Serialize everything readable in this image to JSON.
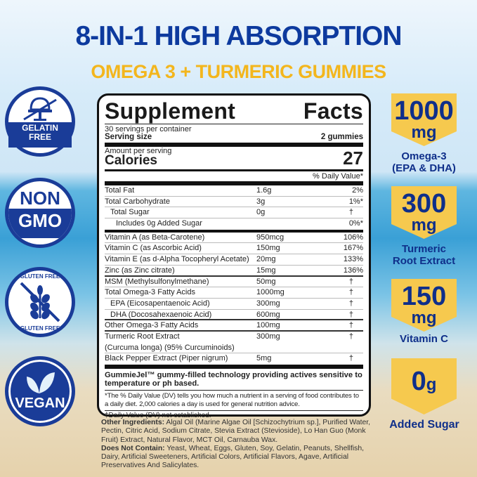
{
  "header": {
    "title": "8-IN-1 HIGH ABSORPTION",
    "subtitle": "OMEGA 3 + TURMERIC GUMMIES"
  },
  "colors": {
    "title": "#0d3a9e",
    "subtitle": "#f3b61d",
    "badge_blue": "#1a3c98",
    "banner_yellow": "#f6c94e"
  },
  "badges_left": [
    {
      "icon": "gelatin-free-icon",
      "line1": "GELATIN",
      "line2": "FREE"
    },
    {
      "icon": "non-gmo-icon",
      "line1": "NON",
      "line2": "GMO"
    },
    {
      "icon": "gluten-free-icon",
      "line1": "GLUTEN FREE",
      "line2": "GLUTEN FREE"
    },
    {
      "icon": "vegan-leaf-icon",
      "line1": "VEGAN"
    }
  ],
  "badges_right": [
    {
      "value": "1000",
      "unit": "mg",
      "caption1": "Omega-3",
      "caption2": "(EPA & DHA)"
    },
    {
      "value": "300",
      "unit": "mg",
      "caption1": "Turmeric",
      "caption2": "Root Extract"
    },
    {
      "value": "150",
      "unit": "mg",
      "caption1": "Vitamin C",
      "caption2": ""
    },
    {
      "value": "0",
      "unit": "g",
      "caption1": "Added Sugar",
      "caption2": ""
    }
  ],
  "facts": {
    "title_left": "Supplement",
    "title_right": "Facts",
    "servings": "30 servings per container",
    "serving_size_label": "Serving size",
    "serving_size": "2 gummies",
    "amount_label": "Amount per serving",
    "calories_label": "Calories",
    "calories": "27",
    "dv_header": "% Daily Value*",
    "group1": [
      {
        "name": "Total Fat",
        "amount": "1.6g",
        "dv": "2%",
        "indent": 0
      },
      {
        "name": "Total Carbohydrate",
        "amount": "3g",
        "dv": "1%*",
        "indent": 0
      },
      {
        "name": "Total Sugar",
        "amount": "0g",
        "dv": "†",
        "indent": 1
      },
      {
        "name": "Includes 0g Added Sugar",
        "amount": "",
        "dv": "0%*",
        "indent": 2
      }
    ],
    "group2": [
      {
        "name": "Vitamin A (as Beta-Carotene)",
        "amount": "950mcg",
        "dv": "106%",
        "indent": 0
      },
      {
        "name": "Vitamin C (as Ascorbic Acid)",
        "amount": "150mg",
        "dv": "167%",
        "indent": 0
      },
      {
        "name": "Vitamin E (as d-Alpha Tocopheryl Acetate)",
        "amount": "20mg",
        "dv": "133%",
        "indent": 0
      },
      {
        "name": "Zinc (as Zinc citrate)",
        "amount": "15mg",
        "dv": "136%",
        "indent": 0
      },
      {
        "name": "MSM (Methylsulfonylmethane)",
        "amount": "50mg",
        "dv": "†",
        "indent": 0
      },
      {
        "name": "Total Omega-3 Fatty Acids",
        "amount": "1000mg",
        "dv": "†",
        "indent": 0
      },
      {
        "name": "EPA (Eicosapentaenoic Acid)",
        "amount": "300mg",
        "dv": "†",
        "indent": 1
      },
      {
        "name": "DHA (Docosahexaenoic Acid)",
        "amount": "600mg",
        "dv": "†",
        "indent": 1
      },
      {
        "name": "Other Omega-3 Fatty Acids",
        "amount": "100mg",
        "dv": "†",
        "indent": 0
      },
      {
        "name": "Turmeric Root Extract",
        "amount": "300mg",
        "dv": "†",
        "indent": 0
      },
      {
        "name": "(Curcuma longa) (95% Curcuminoids)",
        "amount": "",
        "dv": "",
        "indent": 0
      },
      {
        "name": "Black Pepper Extract (Piper nigrum)",
        "amount": "5mg",
        "dv": "†",
        "indent": 0
      }
    ],
    "tech_note": "GummieJel™ gummy-filled technology providing actives sensitive to temperature or ph based.",
    "footnote": "*The % Daily Value (DV) tells you how much a nutrient in a serving of food contributes to a daily diet. 2,000 calories a day is used for general nutrition advice.",
    "dagger_note": "†Daily Value (DV) not established."
  },
  "ingredients": {
    "other_label": "Other Ingredients:",
    "other": "Algal Oil (Marine Algae Oil [Schizochytrium sp.], Purified Water, Pectin, Citric Acid, Sodium Citrate, Stevia Extract (Stevioside), Lo Han Guo (Monk Fruit) Extract, Natural Flavor, MCT Oil, Carnauba Wax.",
    "not_label": "Does Not Contain:",
    "not": "Yeast, Wheat, Eggs, Gluten, Soy, Gelatin, Peanuts, Shellfish, Dairy, Artificial Sweeteners, Artificial Colors, Artificial Flavors, Agave, Artificial Preservatives And Salicylates."
  }
}
